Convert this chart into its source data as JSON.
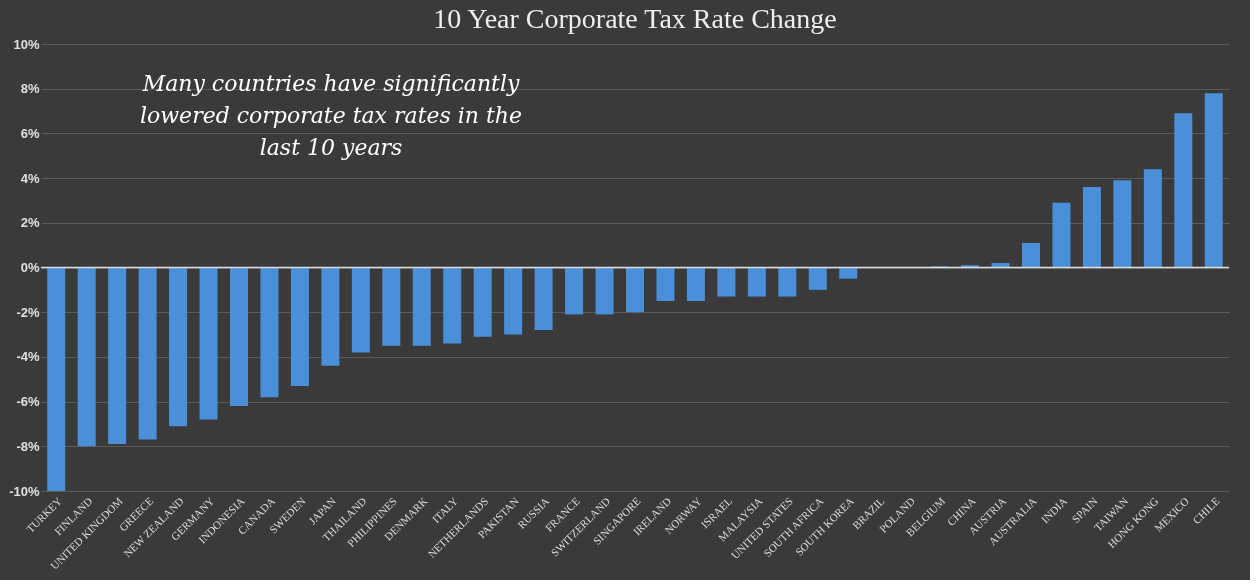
{
  "chart_data": {
    "type": "bar",
    "title": "10 Year Corporate Tax Rate Change",
    "categories": [
      "TURKEY",
      "FINLAND",
      "UNITED KINGDOM",
      "GREECE",
      "NEW ZEALAND",
      "GERMANY",
      "INDONESIA",
      "CANADA",
      "SWEDEN",
      "JAPAN",
      "THAILAND",
      "PHILIPPINES",
      "DENMARK",
      "ITALY",
      "NETHERLANDS",
      "PAKISTAN",
      "RUSSIA",
      "FRANCE",
      "SWITZERLAND",
      "SINGAPORE",
      "IRELAND",
      "NORWAY",
      "ISRAEL",
      "MALAYSIA",
      "UNITED STATES",
      "SOUTH AFRICA",
      "SOUTH KOREA",
      "BRAZIL",
      "POLAND",
      "BELGIUM",
      "CHINA",
      "AUSTRIA",
      "AUSTRALIA",
      "INDIA",
      "SPAIN",
      "TAIWAN",
      "HONG KONG",
      "MEXICO",
      "CHILE"
    ],
    "values": [
      -10.0,
      -8.0,
      -7.9,
      -7.7,
      -7.1,
      -6.8,
      -6.2,
      -5.8,
      -5.3,
      -4.4,
      -3.8,
      -3.5,
      -3.5,
      -3.4,
      -3.1,
      -3.0,
      -2.8,
      -2.1,
      -2.1,
      -2.0,
      -1.5,
      -1.5,
      -1.3,
      -1.3,
      -1.3,
      -1.0,
      -0.5,
      0,
      0,
      0.05,
      0.1,
      0.2,
      1.1,
      2.9,
      3.6,
      3.9,
      4.4,
      6.9,
      7.8
    ],
    "color": "#4a90d9",
    "ylim": [
      -10,
      10
    ],
    "yticks": [
      {
        "value": -10,
        "label": "-10%"
      },
      {
        "value": -8,
        "label": "-8%"
      },
      {
        "value": -6,
        "label": "-6%"
      },
      {
        "value": -4,
        "label": "-4%"
      },
      {
        "value": -2,
        "label": "-2%"
      },
      {
        "value": 0,
        "label": "0%"
      },
      {
        "value": 2,
        "label": "2%"
      },
      {
        "value": 4,
        "label": "4%"
      },
      {
        "value": 6,
        "label": "6%"
      },
      {
        "value": 8,
        "label": "8%"
      },
      {
        "value": 10,
        "label": "10%"
      }
    ],
    "grid": "y",
    "annotations": [
      "Many countries have significantly lowered corporate tax rates in the last 10 years"
    ]
  }
}
